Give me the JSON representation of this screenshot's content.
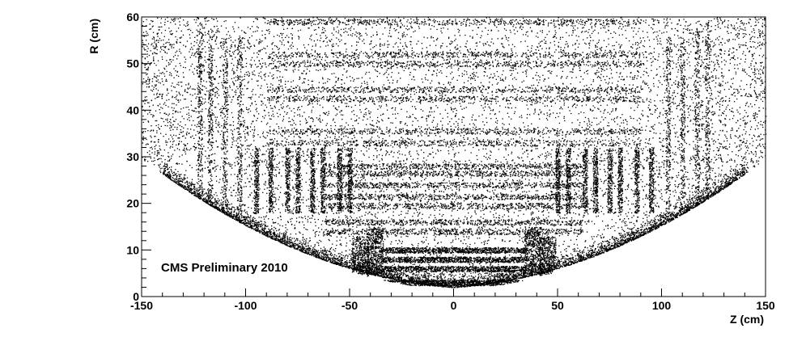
{
  "chart_data": {
    "type": "scatter",
    "title": "",
    "xlabel": "Z (cm)",
    "ylabel": "R (cm)",
    "xlim": [
      -150,
      150
    ],
    "ylim": [
      0,
      60
    ],
    "x_ticks": [
      -150,
      -100,
      -50,
      0,
      50,
      100,
      150
    ],
    "y_ticks": [
      0,
      10,
      20,
      30,
      40,
      50,
      60
    ],
    "annotation": "CMS Preliminary 2010",
    "grid": false,
    "legend": "none",
    "point_color": "#000000",
    "structures": {
      "barrel_layers_R": [
        3,
        6,
        8,
        10,
        14,
        16,
        19.5,
        21.5,
        24,
        26.5,
        28,
        33,
        35.5,
        42.5,
        44.5,
        50,
        52,
        59
      ],
      "beam_pipe_cone_edge": [
        [
          0,
          2
        ],
        [
          40,
          5
        ],
        [
          70,
          10
        ],
        [
          110,
          19
        ],
        [
          140,
          27
        ]
      ],
      "endcap_disks_Z": [
        50,
        55,
        63,
        68,
        75,
        80,
        88,
        95,
        103,
        110,
        117,
        122
      ]
    }
  }
}
